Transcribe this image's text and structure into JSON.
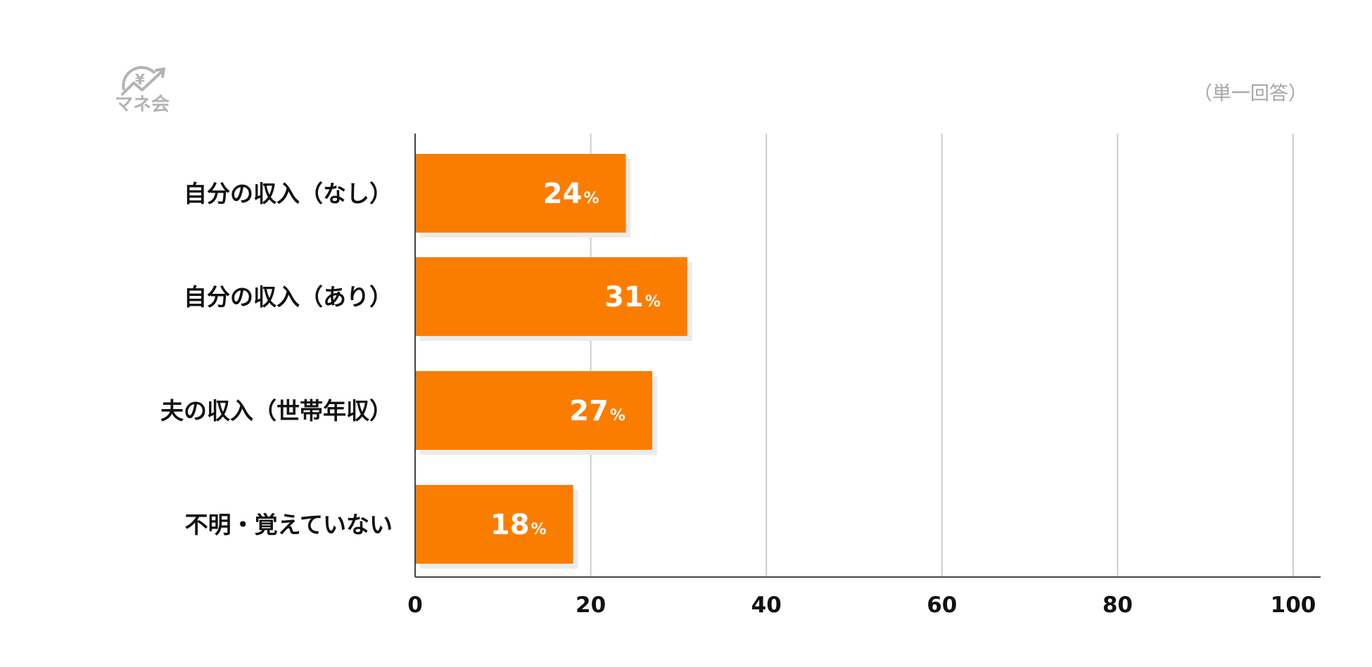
{
  "logo": {
    "text": "マネ会",
    "icon": "yen-chart-logo-icon",
    "symbol": "¥"
  },
  "note": "（単一回答）",
  "colors": {
    "bar": "#fb7d00",
    "shadow": "#ebebeb",
    "grid": "#cccccc",
    "axis": "#444444",
    "value_text": "#ffffff"
  },
  "chart_data": {
    "type": "bar",
    "orientation": "horizontal",
    "categories": [
      "自分の収入（なし）",
      "自分の収入（あり）",
      "夫の収入（世帯年収）",
      "不明・覚えていない"
    ],
    "values": [
      24,
      31,
      27,
      18
    ],
    "value_unit": "%",
    "xlim": [
      0,
      100
    ],
    "xticks": [
      0,
      20,
      40,
      60,
      80,
      100
    ],
    "grid": true,
    "legend": "none",
    "title": "",
    "xlabel": "",
    "ylabel": ""
  }
}
